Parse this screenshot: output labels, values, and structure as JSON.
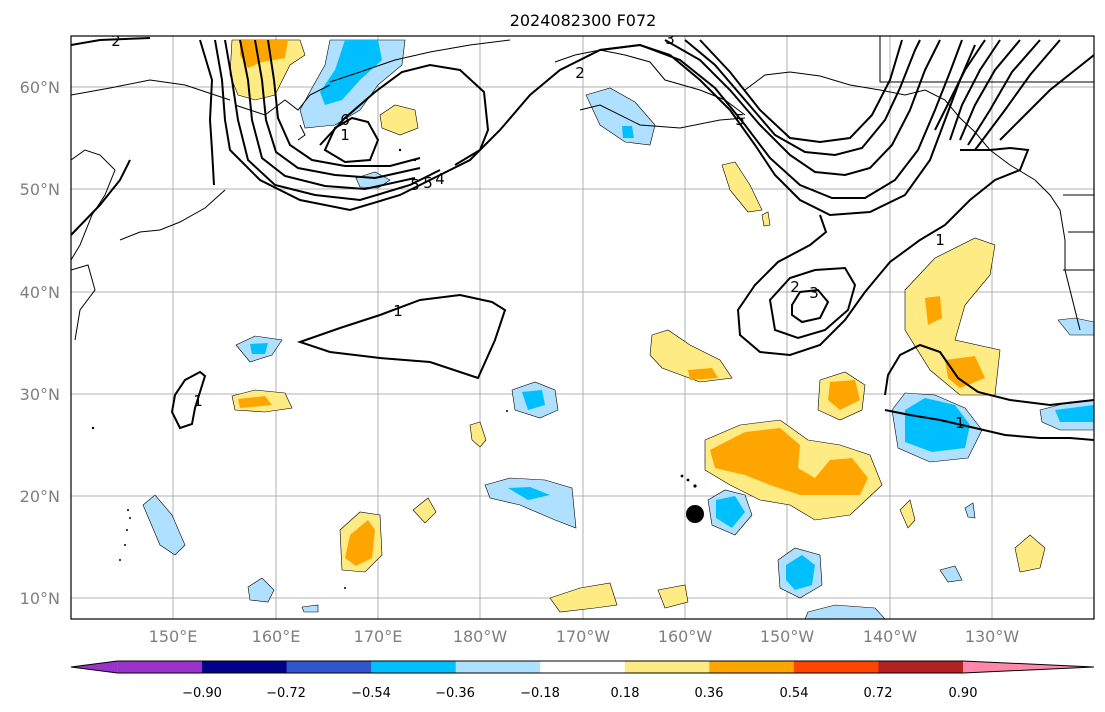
{
  "title": "2024082300 F072",
  "lat_ticks": [
    "60°N",
    "50°N",
    "40°N",
    "30°N",
    "20°N",
    "10°N"
  ],
  "lon_ticks": [
    "150°E",
    "160°E",
    "170°E",
    "180°W",
    "170°W",
    "160°W",
    "150°W",
    "140°W",
    "130°W"
  ],
  "colorbar": {
    "ticks": [
      "−0.90",
      "−0.72",
      "−0.54",
      "−0.36",
      "−0.18",
      "0.18",
      "0.36",
      "0.54",
      "0.72",
      "0.90"
    ],
    "colors": [
      "#9933cc",
      "#000088",
      "#3355cc",
      "#00bfff",
      "#b0e0ff",
      "#ffffff",
      "#ffeb84",
      "#ffa500",
      "#ff4500",
      "#b22222",
      "#ff88aa"
    ]
  },
  "contour_labels": [
    "2",
    "2",
    "6",
    "5",
    "5",
    "4",
    "1",
    "1",
    "1",
    "1",
    "2",
    "3",
    "3",
    "5",
    "1"
  ],
  "marker": "storm-position"
}
